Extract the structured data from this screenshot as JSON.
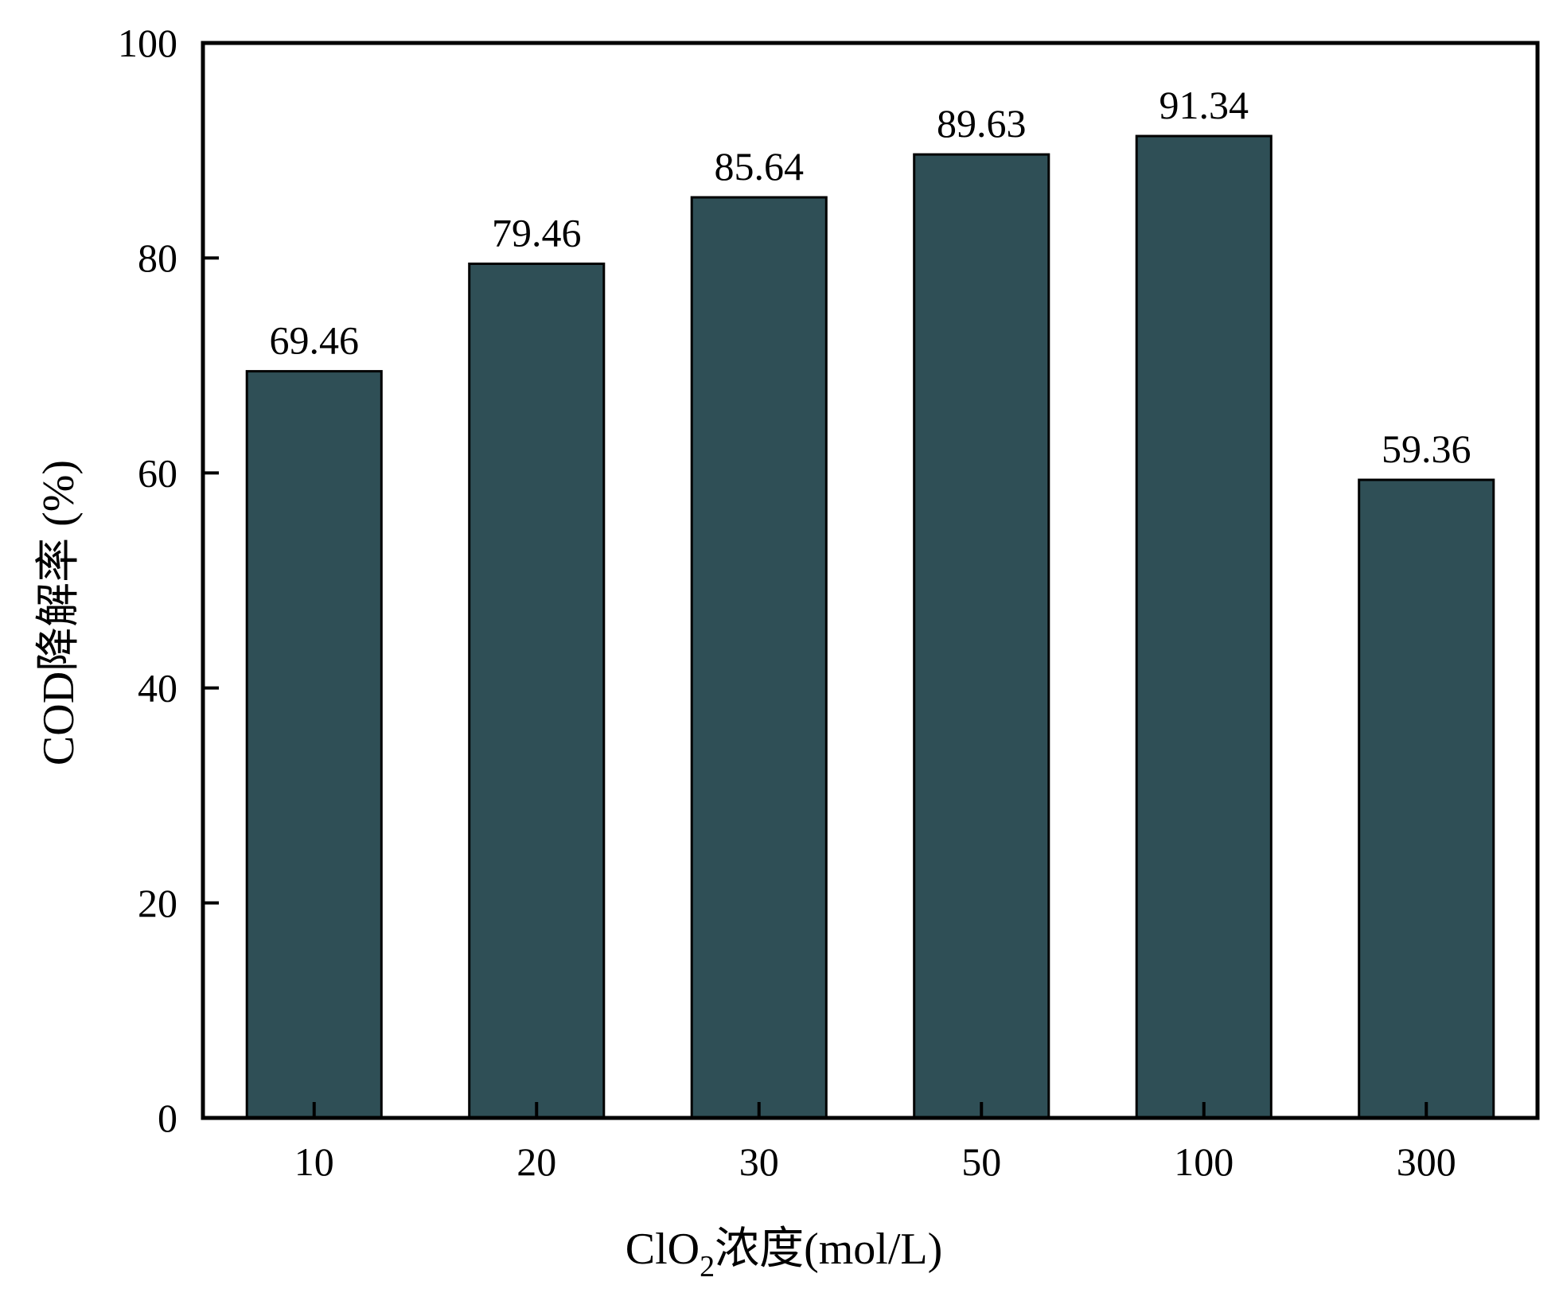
{
  "chart_data": {
    "type": "bar",
    "title": "",
    "categories": [
      "10",
      "20",
      "30",
      "50",
      "100",
      "300"
    ],
    "values": [
      69.46,
      79.46,
      85.64,
      89.63,
      91.34,
      59.36
    ],
    "data_labels": [
      "69.46",
      "79.46",
      "85.64",
      "89.63",
      "91.34",
      "59.36"
    ],
    "xlabel": {
      "prefix": "ClO",
      "subscript": "2",
      "suffix": "浓度(mol/L)"
    },
    "ylabel": "COD降解率 (%)",
    "ylim": [
      0,
      100
    ],
    "yticks": [
      0,
      20,
      40,
      60,
      80,
      100
    ],
    "ytick_labels": [
      "0",
      "20",
      "40",
      "60",
      "80",
      "100"
    ],
    "grid": false,
    "legend": "none",
    "colors": {
      "bar": "#2f4f56",
      "bar_edge": "#000000",
      "axes": "#000000"
    }
  }
}
